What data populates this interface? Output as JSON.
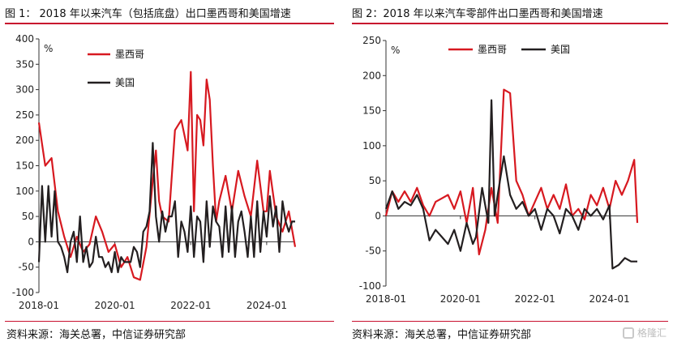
{
  "colors": {
    "mexico": "#d71920",
    "usa": "#231f20",
    "accent": "#c8102e"
  },
  "panels": {
    "left": {
      "title": "图 1：  2018 年以来汽车（包括底盘）出口墨西哥和美国增速",
      "source": "资料来源：海关总署，中信证券研究部"
    },
    "right": {
      "title": "图 2：2018 年以来汽车零部件出口墨西哥和美国增速",
      "source": "资料来源：海关总署，中信证券研究部"
    }
  },
  "watermark": {
    "text": "格隆汇"
  },
  "chart_data": [
    {
      "type": "line",
      "ylabel": "%",
      "ylim": [
        -100,
        400
      ],
      "yticks": [
        -100,
        -50,
        0,
        50,
        100,
        150,
        200,
        250,
        300,
        350,
        400
      ],
      "xticks": [
        "2018-01",
        "2020-01",
        "2022-01",
        "2024-01"
      ],
      "xrange": [
        "2018-01",
        "2024-10"
      ],
      "legend_position": "top-left",
      "series": [
        {
          "name": "墨西哥",
          "color": "#d71920",
          "x": [
            "2018-01",
            "2018-03",
            "2018-05",
            "2018-07",
            "2018-09",
            "2018-11",
            "2019-01",
            "2019-03",
            "2019-05",
            "2019-07",
            "2019-09",
            "2019-11",
            "2020-01",
            "2020-03",
            "2020-05",
            "2020-07",
            "2020-09",
            "2020-11",
            "2021-01",
            "2021-02",
            "2021-03",
            "2021-04",
            "2021-06",
            "2021-08",
            "2021-10",
            "2021-12",
            "2022-01",
            "2022-02",
            "2022-03",
            "2022-04",
            "2022-05",
            "2022-06",
            "2022-07",
            "2022-08",
            "2022-09",
            "2022-10",
            "2022-12",
            "2023-02",
            "2023-04",
            "2023-06",
            "2023-08",
            "2023-10",
            "2023-12",
            "2024-01",
            "2024-02",
            "2024-04",
            "2024-06",
            "2024-08",
            "2024-10"
          ],
          "values": [
            235,
            150,
            165,
            60,
            10,
            -30,
            10,
            -20,
            -5,
            50,
            20,
            -20,
            -5,
            -50,
            -30,
            -70,
            -75,
            -10,
            120,
            180,
            80,
            50,
            40,
            220,
            240,
            180,
            335,
            60,
            250,
            240,
            190,
            320,
            280,
            150,
            40,
            80,
            130,
            60,
            140,
            90,
            50,
            160,
            60,
            60,
            140,
            50,
            20,
            60,
            -10
          ]
        },
        {
          "name": "美国",
          "color": "#231f20",
          "x": [
            "2018-01",
            "2018-02",
            "2018-03",
            "2018-04",
            "2018-05",
            "2018-06",
            "2018-07",
            "2018-08",
            "2018-09",
            "2018-10",
            "2018-11",
            "2018-12",
            "2019-01",
            "2019-02",
            "2019-03",
            "2019-04",
            "2019-05",
            "2019-06",
            "2019-07",
            "2019-08",
            "2019-09",
            "2019-10",
            "2019-11",
            "2019-12",
            "2020-01",
            "2020-02",
            "2020-03",
            "2020-04",
            "2020-05",
            "2020-06",
            "2020-07",
            "2020-08",
            "2020-09",
            "2020-10",
            "2020-11",
            "2020-12",
            "2021-01",
            "2021-02",
            "2021-03",
            "2021-04",
            "2021-05",
            "2021-06",
            "2021-07",
            "2021-08",
            "2021-09",
            "2021-10",
            "2021-11",
            "2021-12",
            "2022-01",
            "2022-02",
            "2022-03",
            "2022-04",
            "2022-05",
            "2022-06",
            "2022-07",
            "2022-08",
            "2022-09",
            "2022-10",
            "2022-11",
            "2022-12",
            "2023-01",
            "2023-02",
            "2023-03",
            "2023-04",
            "2023-05",
            "2023-06",
            "2023-07",
            "2023-08",
            "2023-09",
            "2023-10",
            "2023-11",
            "2023-12",
            "2024-01",
            "2024-02",
            "2024-03",
            "2024-04",
            "2024-05",
            "2024-06",
            "2024-07",
            "2024-08",
            "2024-09",
            "2024-10"
          ],
          "values": [
            -40,
            110,
            0,
            110,
            10,
            100,
            0,
            -10,
            -30,
            -60,
            0,
            20,
            -40,
            50,
            -40,
            -10,
            -50,
            -40,
            10,
            -30,
            -30,
            -50,
            -40,
            -60,
            -20,
            -60,
            -30,
            -40,
            -40,
            -40,
            -10,
            -20,
            -50,
            20,
            30,
            60,
            195,
            50,
            0,
            60,
            20,
            50,
            50,
            80,
            -30,
            40,
            20,
            -20,
            70,
            -30,
            50,
            40,
            -40,
            80,
            -10,
            70,
            40,
            30,
            -30,
            70,
            -20,
            70,
            -30,
            40,
            60,
            20,
            -30,
            50,
            -30,
            80,
            -20,
            60,
            10,
            90,
            30,
            70,
            -20,
            80,
            40,
            20,
            40,
            40
          ]
        }
      ]
    },
    {
      "type": "line",
      "ylabel": "%",
      "ylim": [
        -100,
        250
      ],
      "yticks": [
        -100,
        -50,
        0,
        50,
        100,
        150,
        200,
        250
      ],
      "xticks": [
        "2018-01",
        "2020-01",
        "2022-01",
        "2024-01"
      ],
      "xrange": [
        "2018-01",
        "2024-10"
      ],
      "legend_position": "top",
      "series": [
        {
          "name": "墨西哥",
          "color": "#d71920",
          "x": [
            "2018-01",
            "2018-03",
            "2018-05",
            "2018-07",
            "2018-09",
            "2018-11",
            "2019-01",
            "2019-03",
            "2019-05",
            "2019-07",
            "2019-09",
            "2019-11",
            "2020-01",
            "2020-03",
            "2020-05",
            "2020-07",
            "2020-09",
            "2020-11",
            "2021-01",
            "2021-03",
            "2021-05",
            "2021-07",
            "2021-09",
            "2021-11",
            "2022-01",
            "2022-03",
            "2022-05",
            "2022-07",
            "2022-09",
            "2022-11",
            "2023-01",
            "2023-03",
            "2023-05",
            "2023-07",
            "2023-09",
            "2023-11",
            "2024-01",
            "2024-03",
            "2024-05",
            "2024-07",
            "2024-09",
            "2024-10"
          ],
          "values": [
            0,
            35,
            20,
            35,
            20,
            40,
            15,
            0,
            20,
            25,
            30,
            10,
            35,
            -10,
            40,
            -55,
            -20,
            40,
            -10,
            180,
            175,
            50,
            30,
            0,
            20,
            40,
            10,
            30,
            10,
            45,
            0,
            10,
            -5,
            30,
            15,
            40,
            10,
            50,
            30,
            50,
            80,
            -10
          ]
        },
        {
          "name": "美国",
          "color": "#231f20",
          "x": [
            "2018-01",
            "2018-03",
            "2018-05",
            "2018-07",
            "2018-09",
            "2018-11",
            "2019-01",
            "2019-03",
            "2019-05",
            "2019-07",
            "2019-09",
            "2019-11",
            "2020-01",
            "2020-03",
            "2020-05",
            "2020-06",
            "2020-08",
            "2020-10",
            "2020-11",
            "2020-12",
            "2021-01",
            "2021-03",
            "2021-05",
            "2021-07",
            "2021-09",
            "2021-11",
            "2022-01",
            "2022-03",
            "2022-05",
            "2022-07",
            "2022-09",
            "2022-11",
            "2023-01",
            "2023-03",
            "2023-05",
            "2023-07",
            "2023-09",
            "2023-11",
            "2024-01",
            "2024-02",
            "2024-04",
            "2024-06",
            "2024-08",
            "2024-10"
          ],
          "values": [
            10,
            35,
            10,
            20,
            15,
            30,
            10,
            -35,
            -20,
            -30,
            -40,
            -20,
            -50,
            -10,
            -40,
            -30,
            40,
            -10,
            165,
            0,
            30,
            85,
            30,
            10,
            20,
            0,
            10,
            -20,
            10,
            0,
            -25,
            10,
            0,
            -20,
            10,
            0,
            10,
            -5,
            15,
            -75,
            -70,
            -60,
            -65,
            -65
          ]
        }
      ]
    }
  ]
}
